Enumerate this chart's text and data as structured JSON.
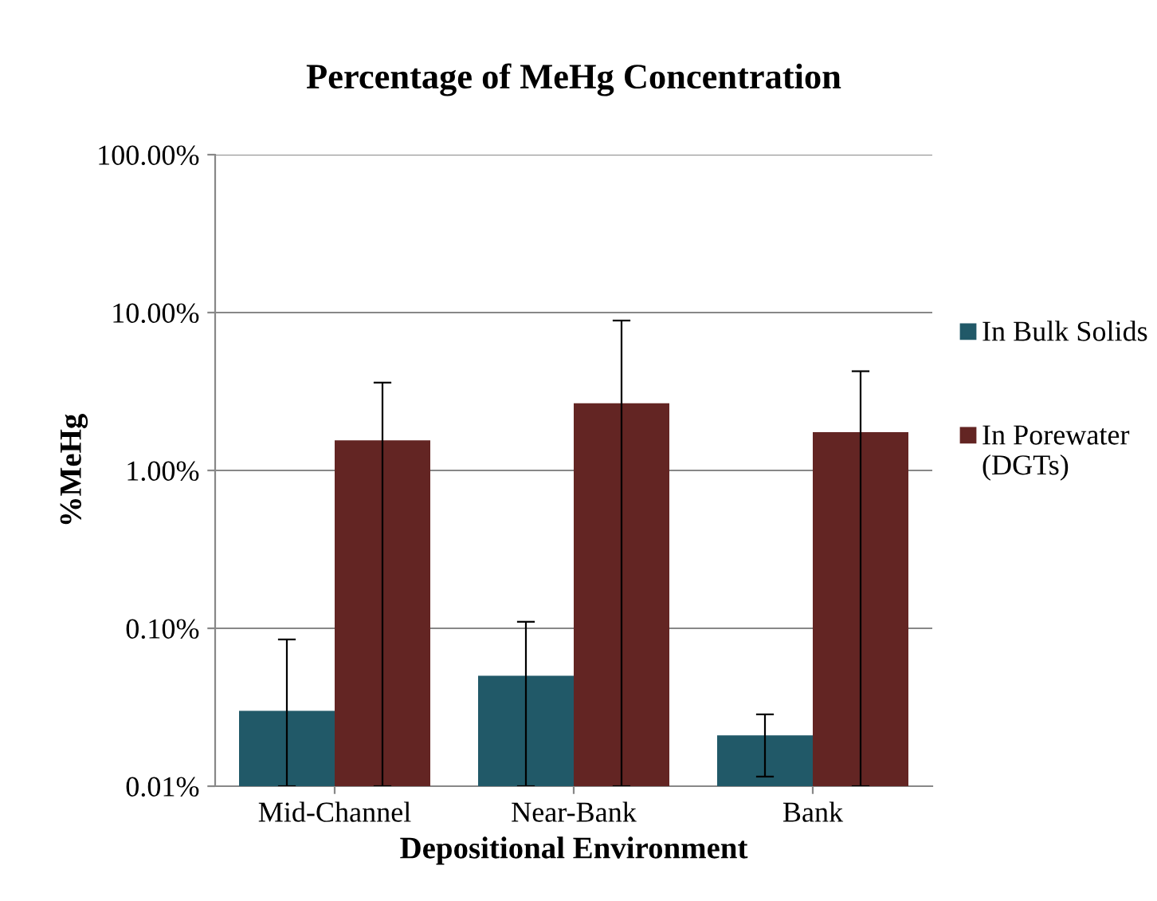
{
  "chart_data": {
    "type": "bar",
    "title": "Percentage of MeHg Concentration",
    "xlabel": "Depositional Environment",
    "ylabel": "%MeHg",
    "categories": [
      "Mid-Channel",
      "Near-Bank",
      "Bank"
    ],
    "series": [
      {
        "name": "In Bulk Solids",
        "color": "#215968",
        "values": [
          0.03,
          0.05,
          0.021
        ],
        "errors": [
          [
            0.01,
            0.085
          ],
          [
            0.01,
            0.11
          ],
          [
            0.0115,
            0.0285
          ]
        ]
      },
      {
        "name": "In Porewater (DGTs)",
        "color": "#632523",
        "values": [
          1.55,
          2.66,
          1.75
        ],
        "errors": [
          [
            0.01,
            3.6
          ],
          [
            0.01,
            8.9
          ],
          [
            0.01,
            4.25
          ]
        ]
      }
    ],
    "log": "y",
    "ylim": [
      0.01,
      100
    ],
    "yticks": [
      {
        "value": 0.01,
        "label": "0.01%"
      },
      {
        "value": 0.1,
        "label": "0.10%"
      },
      {
        "value": 1,
        "label": "1.00%"
      },
      {
        "value": 10,
        "label": "10.00%"
      },
      {
        "value": 100,
        "label": "100.00%"
      }
    ],
    "grid": "y",
    "legend": "right"
  }
}
